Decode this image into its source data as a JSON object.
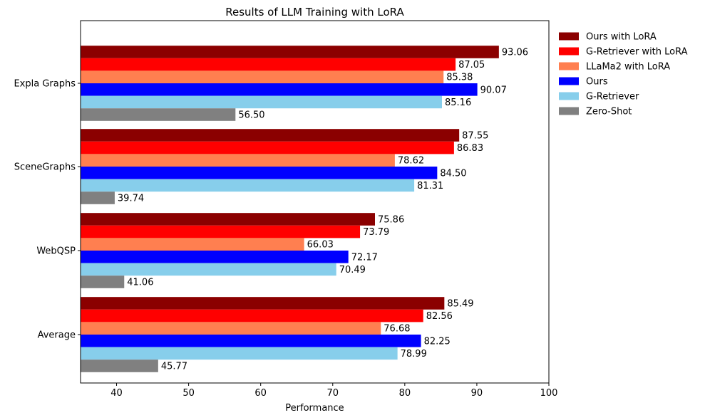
{
  "chart_data": {
    "type": "bar",
    "orientation": "horizontal",
    "title": "Results of LLM Training with LoRA",
    "xlabel": "Performance",
    "ylabel": "",
    "xlim": [
      35,
      100
    ],
    "xticks": [
      40,
      50,
      60,
      70,
      80,
      90,
      100
    ],
    "grid": false,
    "legend_position": "outside-right-top",
    "categories": [
      "Expla Graphs",
      "SceneGraphs",
      "WebQSP",
      "Average"
    ],
    "series": [
      {
        "name": "Ours with LoRA",
        "color": "#8b0000",
        "values": [
          93.06,
          87.55,
          75.86,
          85.49
        ],
        "labels": [
          "93.06",
          "87.55",
          "75.86",
          "85.49"
        ]
      },
      {
        "name": "G-Retriever with LoRA",
        "color": "#ff0000",
        "values": [
          87.05,
          86.83,
          73.79,
          82.56
        ],
        "labels": [
          "87.05",
          "86.83",
          "73.79",
          "82.56"
        ]
      },
      {
        "name": "LLaMa2 with LoRA",
        "color": "#ff7f50",
        "values": [
          85.38,
          78.62,
          66.03,
          76.68
        ],
        "labels": [
          "85.38",
          "78.62",
          "66.03",
          "76.68"
        ]
      },
      {
        "name": "Ours",
        "color": "#0000ff",
        "values": [
          90.07,
          84.5,
          72.17,
          82.25
        ],
        "labels": [
          "90.07",
          "84.50",
          "72.17",
          "82.25"
        ]
      },
      {
        "name": "G-Retriever",
        "color": "#87ceeb",
        "values": [
          85.16,
          81.31,
          70.49,
          78.99
        ],
        "labels": [
          "85.16",
          "81.31",
          "70.49",
          "78.99"
        ]
      },
      {
        "name": "Zero-Shot",
        "color": "#808080",
        "values": [
          56.5,
          39.74,
          41.06,
          45.77
        ],
        "labels": [
          "56.50",
          "39.74",
          "41.06",
          "45.77"
        ]
      }
    ]
  }
}
